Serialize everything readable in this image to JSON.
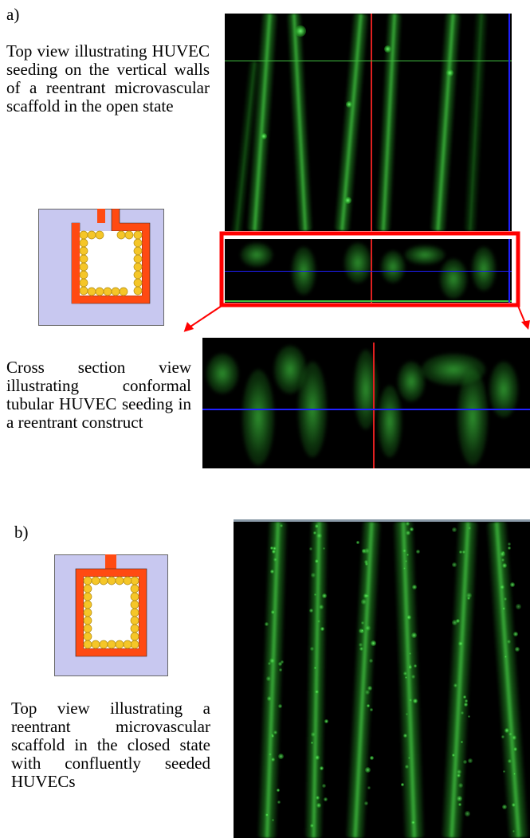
{
  "panel_a": {
    "label": "a)",
    "top_view_caption": "Top view illustrating HUVEC seeding on the vertical walls of a reentrant microvascular scaffold in the open state",
    "cross_section_caption": "Cross section view illustrating conformal tubular HUVEC seeding in a reentrant construct"
  },
  "panel_b": {
    "label": "b)",
    "top_view_caption": "Top view illustrating a reentrant microvascular scaffold in the closed state with confluently seeded HUVECs"
  },
  "colors": {
    "scaffold_fill": "#c8c8f0",
    "scaffold_wall": "#ff4a12",
    "cell": "#f5c628",
    "highlight_box": "#ff0000",
    "crosshair_red": "#e02020",
    "crosshair_green": "#40c040",
    "crosshair_blue": "#2020ff",
    "cell_stain": "#3cd23c"
  }
}
